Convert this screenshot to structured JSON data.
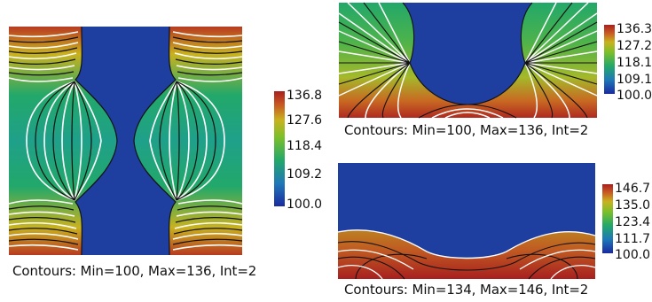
{
  "panels": [
    {
      "id": "left",
      "caption": "Contours: Min=100, Max=136, Int=2",
      "colorbar": {
        "ticks": [
          "136.8",
          "127.6",
          "118.4",
          "109.2",
          "100.0"
        ]
      }
    },
    {
      "id": "top-right",
      "caption": "Contours: Min=100, Max=136, Int=2",
      "colorbar": {
        "ticks": [
          "136.3",
          "127.2",
          "118.1",
          "109.1",
          "100.0"
        ]
      }
    },
    {
      "id": "bottom-right",
      "caption": "Contours: Min=134, Max=146, Int=2",
      "colorbar": {
        "ticks": [
          "146.7",
          "135.0",
          "123.4",
          "111.7",
          "100.0"
        ]
      }
    }
  ],
  "colors": {
    "region_blue": "#1f3fa0",
    "colormap": [
      "#1a2aa0",
      "#1f78b8",
      "#22a86a",
      "#7cbf2a",
      "#c9b21f",
      "#c85a22",
      "#a8201f"
    ],
    "contour_white": "#ffffff",
    "contour_black": "#111111"
  }
}
